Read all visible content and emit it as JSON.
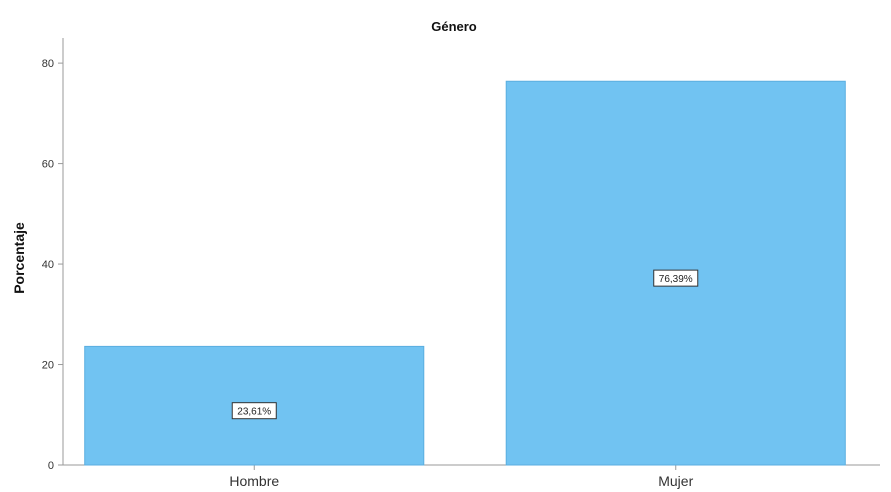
{
  "chart_data": {
    "type": "bar",
    "title": "Género",
    "xlabel": "",
    "ylabel": "Porcentaje",
    "categories": [
      "Hombre",
      "Mujer"
    ],
    "values": [
      23.61,
      76.39
    ],
    "data_labels": [
      "23,61%",
      "76,39%"
    ],
    "yticks": [
      "0",
      "20",
      "40",
      "60",
      "80"
    ],
    "ylim": [
      0,
      85
    ],
    "grid": false,
    "bar_color": "#71c3f2",
    "bar_edge_color": "#5aaee0"
  }
}
